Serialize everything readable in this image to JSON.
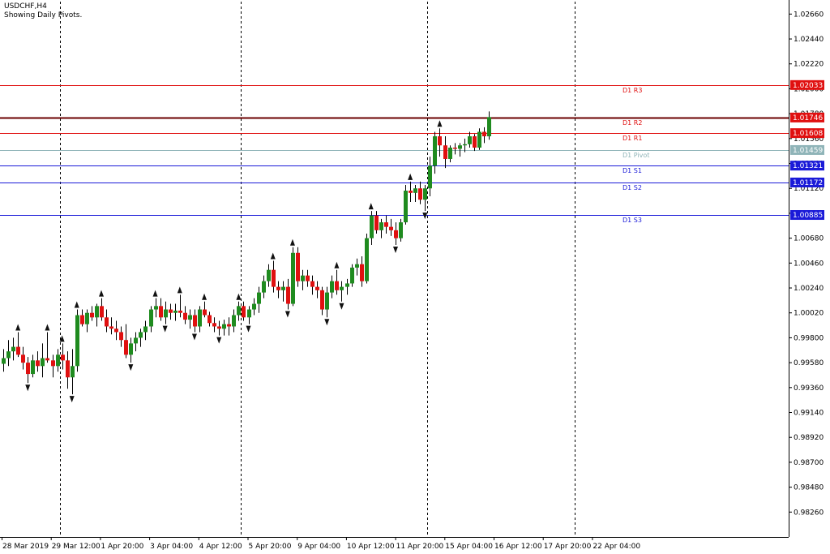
{
  "header": {
    "symbol_tf": "USDCHF,H4",
    "indicator_note": "Showing Daily Pivots."
  },
  "colors": {
    "bull": "#1f8b1f",
    "bear": "#e01010",
    "wick": "#000000",
    "resistance": "#e01010",
    "r2_line": "#6b0000",
    "pivot": "#8fb4b8",
    "support": "#1a1ad8",
    "grid_vertical": "#000000",
    "fractal_arrow": "#111111"
  },
  "chart_data": {
    "type": "candlestick",
    "title": "",
    "ylim": [
      0.9804,
      1.0277
    ],
    "y_ticks": [
      "1.02660",
      "1.02440",
      "1.02220",
      "1.02000",
      "1.01780",
      "1.01560",
      "1.01340",
      "1.01120",
      "1.00900",
      "1.00680",
      "1.00460",
      "1.00240",
      "1.00020",
      "0.99800",
      "0.99580",
      "0.99360",
      "0.99140",
      "0.98920",
      "0.98700",
      "0.98480",
      "0.98260"
    ],
    "x_labels": [
      "28 Mar 2019",
      "29 Mar 12:00",
      "1 Apr 20:00",
      "3 Apr 04:00",
      "4 Apr 12:00",
      "5 Apr 20:00",
      "9 Apr 04:00",
      "10 Apr 12:00",
      "11 Apr 20:00",
      "15 Apr 04:00",
      "16 Apr 12:00",
      "17 Apr 20:00",
      "22 Apr 04:00"
    ],
    "day_separators_after_index": [
      11,
      48,
      86,
      116
    ],
    "pivot_levels": [
      {
        "name": "D1 R3",
        "value": 1.02033,
        "label": "1.02033",
        "style": "resistance"
      },
      {
        "name": "D1 R2",
        "value": 1.01746,
        "label": "1.01746",
        "style": "r2"
      },
      {
        "name": "D1 R1",
        "value": 1.01608,
        "label": "1.01608",
        "style": "resistance"
      },
      {
        "name": "D1 Pivot",
        "value": 1.01459,
        "label": "1.01459",
        "style": "pivot"
      },
      {
        "name": "D1 S1",
        "value": 1.01321,
        "label": "1.01321",
        "style": "support"
      },
      {
        "name": "D1 S2",
        "value": 1.01172,
        "label": "1.01172",
        "style": "support"
      },
      {
        "name": "D1 S3",
        "value": 1.00885,
        "label": "1.00885",
        "style": "support"
      }
    ],
    "candles": [
      [
        0.9957,
        0.997,
        0.995,
        0.9962
      ],
      [
        0.9962,
        0.9978,
        0.9955,
        0.9968
      ],
      [
        0.9968,
        0.998,
        0.996,
        0.9972
      ],
      [
        0.9972,
        0.9985,
        0.9963,
        0.9965
      ],
      [
        0.9965,
        0.9972,
        0.9952,
        0.9958
      ],
      [
        0.9958,
        0.9963,
        0.994,
        0.9948
      ],
      [
        0.9948,
        0.9965,
        0.9945,
        0.996
      ],
      [
        0.996,
        0.9968,
        0.995,
        0.9955
      ],
      [
        0.9955,
        0.9975,
        0.9945,
        0.9962
      ],
      [
        0.9962,
        0.9985,
        0.9958,
        0.996
      ],
      [
        0.996,
        0.9965,
        0.9945,
        0.9955
      ],
      [
        0.9955,
        0.997,
        0.995,
        0.9965
      ],
      [
        0.9965,
        0.9975,
        0.9952,
        0.996
      ],
      [
        0.996,
        0.9968,
        0.9935,
        0.9945
      ],
      [
        0.9945,
        0.997,
        0.993,
        0.9955
      ],
      [
        0.9955,
        1.0005,
        0.995,
        1.0
      ],
      [
        1.0,
        1.0005,
        0.999,
        0.9992
      ],
      [
        0.9992,
        1.0005,
        0.9985,
        1.0002
      ],
      [
        1.0002,
        1.0008,
        0.9995,
        0.9998
      ],
      [
        0.9998,
        1.001,
        0.999,
        1.0008
      ],
      [
        1.0008,
        1.0015,
        0.9995,
        0.9998
      ],
      [
        0.9998,
        1.0005,
        0.9985,
        0.999
      ],
      [
        0.999,
        0.9998,
        0.9983,
        0.9988
      ],
      [
        0.9988,
        0.9995,
        0.9978,
        0.9985
      ],
      [
        0.9985,
        0.999,
        0.9972,
        0.9978
      ],
      [
        0.9978,
        0.9992,
        0.9962,
        0.9965
      ],
      [
        0.9965,
        0.998,
        0.9958,
        0.9975
      ],
      [
        0.9975,
        0.9985,
        0.9968,
        0.998
      ],
      [
        0.998,
        0.9988,
        0.9972,
        0.9985
      ],
      [
        0.9985,
        0.9995,
        0.9978,
        0.999
      ],
      [
        0.999,
        1.0008,
        0.9985,
        1.0005
      ],
      [
        1.0005,
        1.0015,
        0.9998,
        1.0008
      ],
      [
        1.0008,
        1.0015,
        0.9995,
        0.9998
      ],
      [
        0.9998,
        1.0012,
        0.9992,
        1.0005
      ],
      [
        1.0005,
        1.001,
        0.9996,
        1.0002
      ],
      [
        1.0002,
        1.001,
        0.9995,
        1.0004
      ],
      [
        1.0004,
        1.0018,
        0.9998,
        1.0002
      ],
      [
        1.0002,
        1.0008,
        0.9992,
        0.9996
      ],
      [
        0.9996,
        1.0005,
        0.9988,
        1.0
      ],
      [
        1.0,
        1.0005,
        0.9985,
        0.999
      ],
      [
        0.999,
        1.0008,
        0.9985,
        1.0005
      ],
      [
        1.0005,
        1.0012,
        0.9998,
        1.0
      ],
      [
        1.0,
        1.0003,
        0.999,
        0.9993
      ],
      [
        0.9993,
        0.9998,
        0.9985,
        0.999
      ],
      [
        0.999,
        0.9995,
        0.9982,
        0.9988
      ],
      [
        0.9988,
        0.9996,
        0.9982,
        0.9992
      ],
      [
        0.9992,
        0.9998,
        0.9982,
        0.999
      ],
      [
        0.999,
        1.0005,
        0.9985,
        1.0
      ],
      [
        1.0,
        1.0012,
        0.9995,
        1.0008
      ],
      [
        1.0008,
        1.0012,
        0.9995,
        0.9998
      ],
      [
        0.9998,
        1.0008,
        0.9992,
        1.0005
      ],
      [
        1.0005,
        1.0015,
        1.0,
        1.001
      ],
      [
        1.001,
        1.0025,
        1.0002,
        1.002
      ],
      [
        1.002,
        1.0035,
        1.0015,
        1.003
      ],
      [
        1.003,
        1.0045,
        1.0025,
        1.004
      ],
      [
        1.004,
        1.0048,
        1.002,
        1.0025
      ],
      [
        1.0025,
        1.003,
        1.0015,
        1.0022
      ],
      [
        1.0022,
        1.003,
        1.0012,
        1.0025
      ],
      [
        1.0025,
        1.0032,
        1.0005,
        1.001
      ],
      [
        1.001,
        1.006,
        1.0008,
        1.0055
      ],
      [
        1.0055,
        1.006,
        1.0025,
        1.003
      ],
      [
        1.003,
        1.004,
        1.0022,
        1.0035
      ],
      [
        1.0035,
        1.004,
        1.0025,
        1.003
      ],
      [
        1.003,
        1.0035,
        1.0018,
        1.0025
      ],
      [
        1.0025,
        1.003,
        1.0015,
        1.0022
      ],
      [
        1.0022,
        1.0025,
        1.0,
        1.0005
      ],
      [
        1.0005,
        1.0025,
        0.9998,
        1.002
      ],
      [
        1.002,
        1.0035,
        1.0015,
        1.003
      ],
      [
        1.003,
        1.004,
        1.0018,
        1.0022
      ],
      [
        1.0022,
        1.003,
        1.0012,
        1.0025
      ],
      [
        1.0025,
        1.0032,
        1.0018,
        1.0028
      ],
      [
        1.0028,
        1.0045,
        1.0025,
        1.0042
      ],
      [
        1.0042,
        1.005,
        1.0035,
        1.0045
      ],
      [
        1.0045,
        1.0052,
        1.0025,
        1.003
      ],
      [
        1.003,
        1.0072,
        1.0028,
        1.0068
      ],
      [
        1.0068,
        1.0092,
        1.0062,
        1.0088
      ],
      [
        1.0088,
        1.0092,
        1.0072,
        1.0075
      ],
      [
        1.0075,
        1.0085,
        1.0068,
        1.0082
      ],
      [
        1.0082,
        1.0088,
        1.0072,
        1.0078
      ],
      [
        1.0078,
        1.0085,
        1.007,
        1.0075
      ],
      [
        1.0075,
        1.0082,
        1.0062,
        1.0068
      ],
      [
        1.0068,
        1.0085,
        1.0065,
        1.0082
      ],
      [
        1.0082,
        1.0115,
        1.008,
        1.011
      ],
      [
        1.011,
        1.0118,
        1.01,
        1.0108
      ],
      [
        1.0108,
        1.0115,
        1.01,
        1.0112
      ],
      [
        1.0112,
        1.0118,
        1.0098,
        1.0102
      ],
      [
        1.0102,
        1.0115,
        1.0092,
        1.0112
      ],
      [
        1.0112,
        1.014,
        1.0105,
        1.0132
      ],
      [
        1.0132,
        1.0162,
        1.0125,
        1.0158
      ],
      [
        1.0158,
        1.0165,
        1.014,
        1.015
      ],
      [
        1.015,
        1.0158,
        1.013,
        1.0138
      ],
      [
        1.0138,
        1.015,
        1.0135,
        1.0148
      ],
      [
        1.0148,
        1.0152,
        1.0142,
        1.0147
      ],
      [
        1.0147,
        1.0152,
        1.014,
        1.015
      ],
      [
        1.015,
        1.0156,
        1.0144,
        1.0151
      ],
      [
        1.0151,
        1.0162,
        1.0148,
        1.0158
      ],
      [
        1.0158,
        1.016,
        1.0145,
        1.0148
      ],
      [
        1.0148,
        1.0165,
        1.0146,
        1.0162
      ],
      [
        1.0162,
        1.0166,
        1.0152,
        1.0158
      ],
      [
        1.0158,
        1.018,
        1.0155,
        1.0175
      ]
    ]
  }
}
